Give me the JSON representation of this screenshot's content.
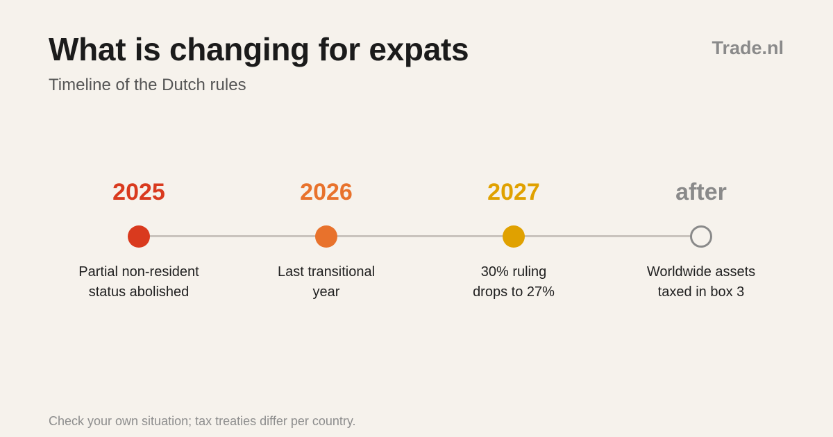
{
  "header": {
    "title": "What is changing for expats",
    "subtitle": "Timeline of the Dutch rules",
    "brand": "Trade.nl"
  },
  "timeline": {
    "milestones": [
      {
        "year": "2025",
        "description_line1": "Partial non-resident",
        "description_line2": "status abolished",
        "color": "#d93a1e",
        "marker": "filled"
      },
      {
        "year": "2026",
        "description_line1": "Last transitional",
        "description_line2": "year",
        "color": "#e8722c",
        "marker": "filled"
      },
      {
        "year": "2027",
        "description_line1": "30% ruling",
        "description_line2": "drops to 27%",
        "color": "#e0a100",
        "marker": "filled"
      },
      {
        "year": "after",
        "description_line1": "Worldwide assets",
        "description_line2": "taxed in box 3",
        "color": "#8a8a8a",
        "marker": "hollow"
      }
    ],
    "line_color": "#c9c3bd"
  },
  "footer": {
    "note": "Check your own situation; tax treaties differ per country."
  }
}
